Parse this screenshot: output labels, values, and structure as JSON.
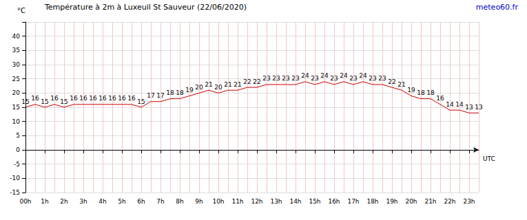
{
  "chart_data": {
    "type": "line",
    "title": "Température à 2m à Luxeuil St Sauveur (22/06/2020)",
    "source": "meteo60.fr",
    "y_label": "°C",
    "x_label": "UTC",
    "categories": [
      "00h",
      null,
      "1h",
      null,
      "2h",
      null,
      "3h",
      null,
      "4h",
      null,
      "5h",
      null,
      "6h",
      null,
      "7h",
      null,
      "8h",
      null,
      "9h",
      null,
      "10h",
      null,
      "11h",
      null,
      "12h",
      null,
      "13h",
      null,
      "14h",
      null,
      "15h",
      null,
      "16h",
      null,
      "17h",
      null,
      "18h",
      null,
      "19h",
      null,
      "20h",
      null,
      "21h",
      null,
      "22h",
      null,
      "23h",
      null
    ],
    "values": [
      15,
      16,
      15,
      16,
      15,
      16,
      16,
      16,
      16,
      16,
      16,
      16,
      15,
      17,
      17,
      18,
      18,
      19,
      20,
      21,
      20,
      21,
      21,
      22,
      22,
      23,
      23,
      23,
      23,
      24,
      23,
      24,
      23,
      24,
      23,
      24,
      23,
      23,
      22,
      21,
      19,
      18,
      18,
      16,
      14,
      14,
      13,
      13
    ],
    "color": "#cc0000",
    "ylim": [
      -15,
      45
    ],
    "yticks": [
      -15,
      -10,
      -5,
      0,
      5,
      10,
      15,
      20,
      25,
      30,
      35,
      40
    ],
    "grid": true,
    "data_labels": true
  }
}
